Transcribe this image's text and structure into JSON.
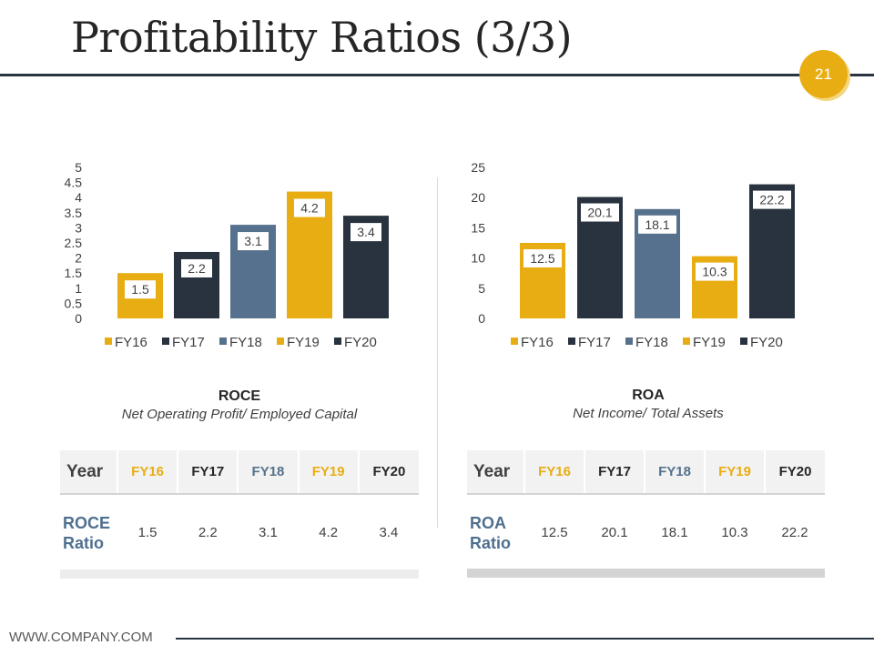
{
  "slide": {
    "title": "Profitability Ratios (3/3)",
    "page_number": "21",
    "footer": "WWW.COMPANY.COM"
  },
  "palette": {
    "yellow": "#e8ad13",
    "navy": "#28333f",
    "steel": "#56718d"
  },
  "roce": {
    "name": "ROCE",
    "formula": "Net Operating Profit/ Employed Capital",
    "row_label": [
      "ROCE",
      "Ratio"
    ]
  },
  "roa": {
    "name": "ROA",
    "formula": "Net Income/ Total Assets",
    "row_label": [
      "ROA",
      "Ratio"
    ]
  },
  "table_year_header": "Year",
  "chart_data": [
    {
      "type": "bar",
      "categories": [
        "FY16",
        "FY17",
        "FY18",
        "FY19",
        "FY20"
      ],
      "values": [
        1.5,
        2.2,
        3.1,
        4.2,
        3.4
      ],
      "value_labels": [
        "1.5",
        "2.2",
        "3.1",
        "4.2",
        "3.4"
      ],
      "colors": [
        "#e8ad13",
        "#28333f",
        "#56718d",
        "#e8ad13",
        "#28333f"
      ],
      "ylim": [
        0,
        5
      ],
      "yticks": [
        "0",
        "0.5",
        "1",
        "1.5",
        "2",
        "2.5",
        "3",
        "3.5",
        "4",
        "4.5",
        "5"
      ],
      "legend": "bottom",
      "grid": false
    },
    {
      "type": "bar",
      "categories": [
        "FY16",
        "FY17",
        "FY18",
        "FY19",
        "FY20"
      ],
      "values": [
        12.5,
        20.1,
        18.1,
        10.3,
        22.2
      ],
      "value_labels": [
        "12.5",
        "20.1",
        "18.1",
        "10.3",
        "22.2"
      ],
      "colors": [
        "#e8ad13",
        "#28333f",
        "#56718d",
        "#e8ad13",
        "#28333f"
      ],
      "ylim": [
        0,
        25
      ],
      "yticks": [
        "0",
        "5",
        "10",
        "15",
        "20",
        "25"
      ],
      "legend": "bottom",
      "grid": false
    }
  ]
}
